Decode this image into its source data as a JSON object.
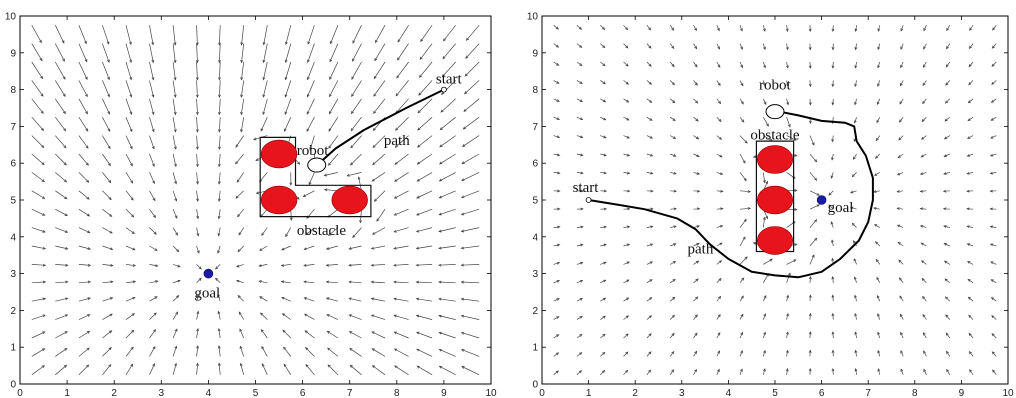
{
  "figures": [
    {
      "id": "left",
      "axes": {
        "xlim": [
          0,
          10
        ],
        "ylim": [
          0,
          10
        ],
        "xticks": [
          "0",
          "1",
          "2",
          "3",
          "4",
          "5",
          "6",
          "7",
          "8",
          "9",
          "10"
        ],
        "yticks": [
          "0",
          "1",
          "2",
          "3",
          "4",
          "5",
          "6",
          "7",
          "8",
          "9",
          "10"
        ]
      },
      "goal": {
        "label": "goal",
        "x": 4.0,
        "y": 3.0
      },
      "start": {
        "label": "start",
        "x": 9.0,
        "y": 8.0
      },
      "robot": {
        "label": "robot",
        "x": 6.3,
        "y": 5.95
      },
      "obstacle_label": "obstacle",
      "path_label": "path",
      "obstacles": [
        {
          "cx": 5.5,
          "cy": 6.25,
          "rx": 0.38,
          "ry": 0.38
        },
        {
          "cx": 5.5,
          "cy": 5.0,
          "rx": 0.38,
          "ry": 0.38
        },
        {
          "cx": 7.0,
          "cy": 5.0,
          "rx": 0.38,
          "ry": 0.38
        }
      ],
      "obstacle_outline": [
        [
          5.1,
          6.7
        ],
        [
          5.85,
          6.7
        ],
        [
          5.85,
          5.4
        ],
        [
          7.45,
          5.4
        ],
        [
          7.45,
          4.55
        ],
        [
          5.1,
          4.55
        ]
      ],
      "path": [
        [
          9.0,
          8.0
        ],
        [
          8.2,
          7.5
        ],
        [
          7.3,
          6.9
        ],
        [
          6.7,
          6.4
        ],
        [
          6.35,
          6.0
        ]
      ],
      "colors": {
        "obstacle": "#e8141c",
        "goal": "#1a1aa8"
      }
    },
    {
      "id": "right",
      "axes": {
        "xlim": [
          0,
          10
        ],
        "ylim": [
          0,
          10
        ],
        "xticks": [
          "0",
          "1",
          "2",
          "3",
          "4",
          "5",
          "6",
          "7",
          "8",
          "9",
          "10"
        ],
        "yticks": [
          "0",
          "1",
          "2",
          "3",
          "4",
          "5",
          "6",
          "7",
          "8",
          "9",
          "10"
        ]
      },
      "goal": {
        "label": "goal",
        "x": 6.0,
        "y": 5.0
      },
      "start": {
        "label": "start",
        "x": 1.0,
        "y": 5.0
      },
      "robot": {
        "label": "robot",
        "x": 5.0,
        "y": 7.4
      },
      "obstacle_label": "obstacle",
      "path_label": "path",
      "obstacles": [
        {
          "cx": 5.0,
          "cy": 6.1,
          "rx": 0.38,
          "ry": 0.38
        },
        {
          "cx": 5.0,
          "cy": 5.0,
          "rx": 0.38,
          "ry": 0.38
        },
        {
          "cx": 5.0,
          "cy": 3.9,
          "rx": 0.38,
          "ry": 0.38
        }
      ],
      "obstacle_outline": [
        [
          4.6,
          6.6
        ],
        [
          5.4,
          6.6
        ],
        [
          5.4,
          3.6
        ],
        [
          4.6,
          3.6
        ]
      ],
      "path": [
        [
          1.0,
          5.0
        ],
        [
          1.5,
          4.9
        ],
        [
          2.2,
          4.75
        ],
        [
          2.9,
          4.5
        ],
        [
          3.3,
          4.2
        ],
        [
          3.6,
          3.8
        ],
        [
          4.0,
          3.4
        ],
        [
          4.5,
          3.05
        ],
        [
          5.0,
          2.95
        ],
        [
          5.5,
          2.9
        ],
        [
          6.0,
          3.05
        ],
        [
          6.4,
          3.4
        ],
        [
          6.8,
          3.9
        ],
        [
          7.0,
          4.4
        ],
        [
          7.1,
          5.0
        ],
        [
          7.1,
          5.6
        ],
        [
          6.95,
          6.2
        ],
        [
          6.75,
          6.6
        ],
        [
          6.7,
          7.0
        ],
        [
          6.5,
          7.1
        ],
        [
          6.0,
          7.15
        ],
        [
          5.5,
          7.3
        ],
        [
          5.1,
          7.4
        ]
      ],
      "colors": {
        "obstacle": "#e8141c",
        "goal": "#1a1aa8"
      }
    }
  ]
}
